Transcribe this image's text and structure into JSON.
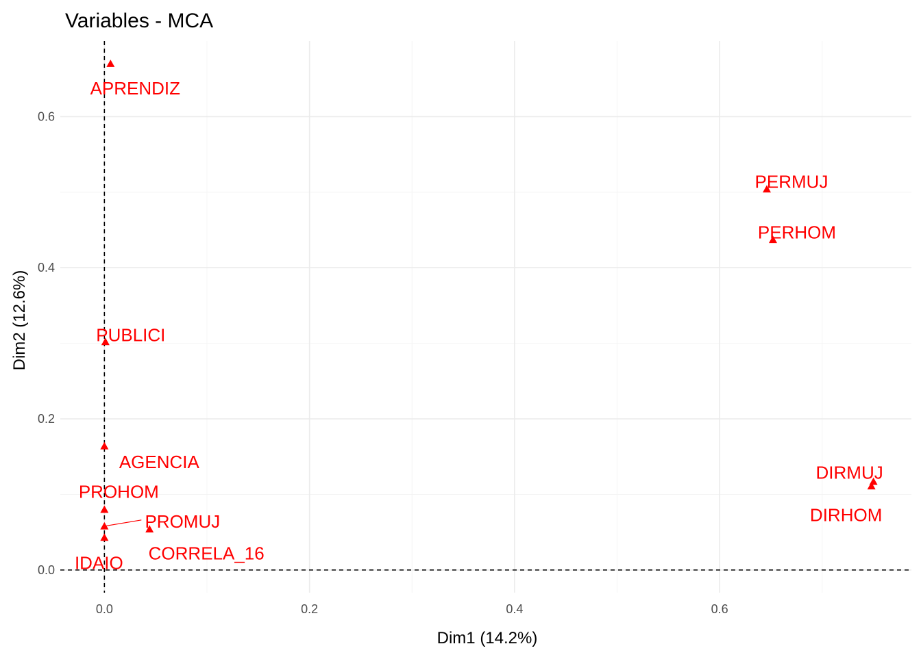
{
  "chart_data": {
    "type": "scatter",
    "title": "Variables - MCA",
    "xlabel": "Dim1 (14.2%)",
    "ylabel": "Dim2 (12.6%)",
    "xlim": [
      -0.043,
      0.787
    ],
    "ylim": [
      -0.03,
      0.7
    ],
    "x_ticks": [
      0.0,
      0.2,
      0.4,
      0.6
    ],
    "x_tick_labels": [
      "0.0",
      "0.2",
      "0.4",
      "0.6"
    ],
    "y_ticks": [
      0.0,
      0.2,
      0.4,
      0.6
    ],
    "y_tick_labels": [
      "0.0",
      "0.2",
      "0.4",
      "0.6"
    ],
    "grid": true,
    "reference_lines": [
      "x = 0",
      "y = 0"
    ],
    "marker": "triangle",
    "color": "#ff0000",
    "points": [
      {
        "name": "APRENDIZ",
        "x": 0.006,
        "y": 0.67
      },
      {
        "name": "PERMUJ",
        "x": 0.646,
        "y": 0.504
      },
      {
        "name": "PERHOM",
        "x": 0.652,
        "y": 0.437
      },
      {
        "name": "PUBLICI",
        "x": 0.001,
        "y": 0.302
      },
      {
        "name": "AGENCIA",
        "x": 0.0,
        "y": 0.164
      },
      {
        "name": "DIRMUJ",
        "x": 0.75,
        "y": 0.117
      },
      {
        "name": "DIRHOM",
        "x": 0.748,
        "y": 0.111
      },
      {
        "name": "PROHOM",
        "x": 0.0,
        "y": 0.08
      },
      {
        "name": "PROMUJ",
        "x": 0.0,
        "y": 0.058
      },
      {
        "name": "CORRELA_16",
        "x": 0.044,
        "y": 0.054
      },
      {
        "name": "IDAIO",
        "x": 0.0,
        "y": 0.043
      }
    ]
  }
}
